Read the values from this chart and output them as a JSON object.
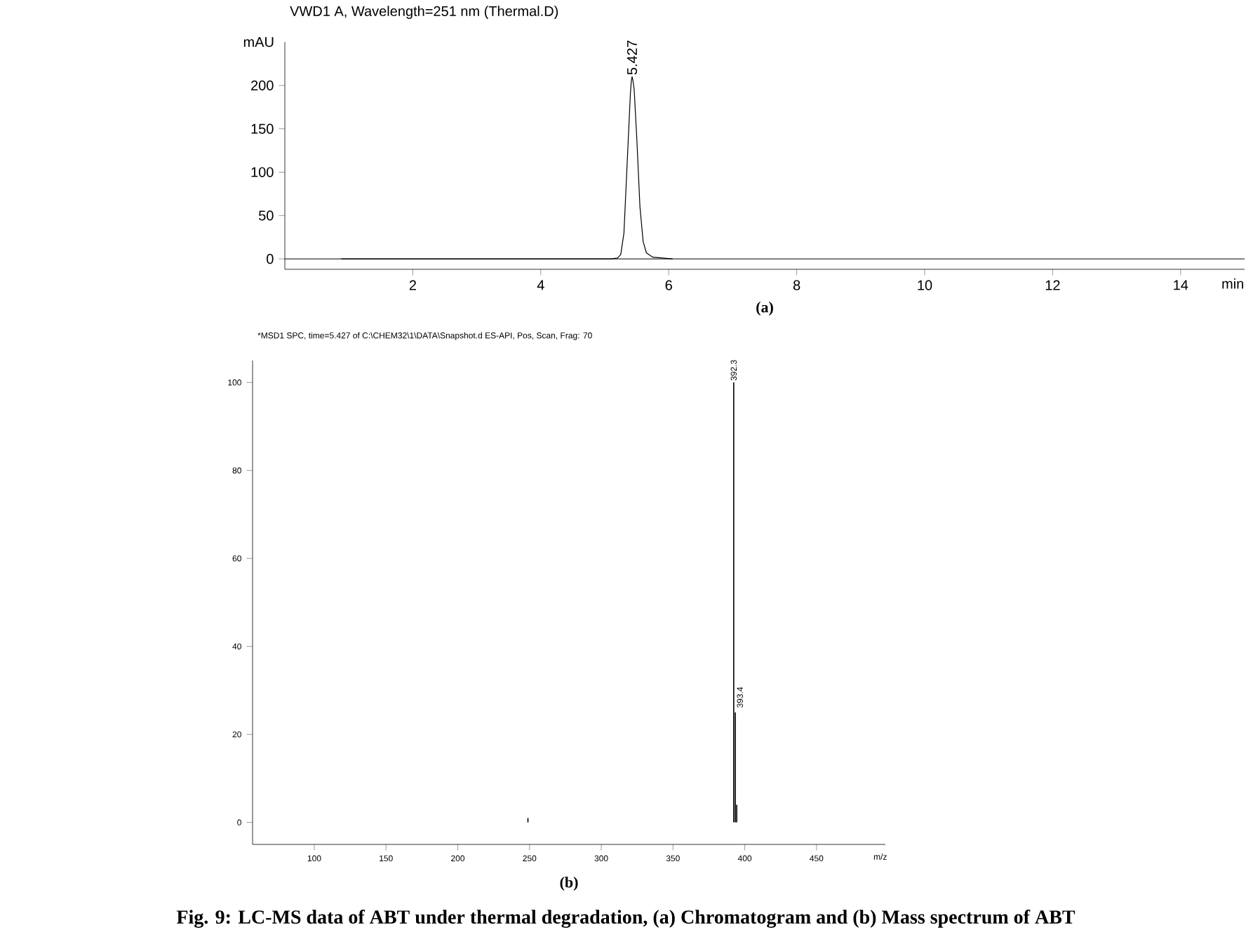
{
  "chart_data": [
    {
      "type": "line",
      "title": "VWD1 A, Wavelength=251 nm (Thermal.D)",
      "xlabel": "min",
      "ylabel": "mAU",
      "x": [
        0.88,
        1.7,
        2.0,
        2.3,
        2.6,
        3.0,
        3.4,
        5.1,
        5.2,
        5.25,
        5.3,
        5.35,
        5.4,
        5.415,
        5.427,
        5.44,
        5.46,
        5.5,
        5.55,
        5.6,
        5.65,
        5.75,
        5.9,
        6.06
      ],
      "series": [
        {
          "color": "#000000",
          "values": [
            0,
            0,
            0,
            0,
            0,
            0,
            0,
            0,
            1,
            5,
            30,
            110,
            190,
            205,
            210,
            206,
            195,
            140,
            60,
            20,
            7,
            2,
            1,
            0
          ]
        }
      ],
      "xlim": [
        0,
        15
      ],
      "xticks": [
        2,
        4,
        6,
        8,
        10,
        12,
        14
      ],
      "ylim": [
        -12,
        250
      ],
      "yticks": [
        0,
        50,
        100,
        150,
        200
      ],
      "ref_lines": [
        {
          "axis": "y",
          "value": 0,
          "color": "#000000"
        }
      ],
      "marker": "none",
      "line_style": "solid",
      "annotations": [
        {
          "text": "5.427",
          "x": 5.427,
          "y": 210
        },
        "(a)"
      ]
    },
    {
      "type": "bar",
      "title": "*MSD1 SPC, time=5.427 of C:\\CHEM32\\1\\DATA\\Snapshot.d   ES-API, Pos, Scan, Frag: 70",
      "xlabel": "m/z",
      "x": [
        248.9,
        392.3,
        393.4,
        394.4
      ],
      "series": [
        {
          "color": "#000000",
          "values": [
            1,
            100,
            25,
            4
          ]
        }
      ],
      "xlim": [
        57,
        498
      ],
      "xticks": [
        100,
        150,
        200,
        250,
        300,
        350,
        400,
        450
      ],
      "ylim": [
        -5,
        105
      ],
      "yticks": [
        0,
        20,
        40,
        60,
        80,
        100
      ],
      "annotations": [
        {
          "text": "392.3",
          "x": 392.3,
          "y": 100
        },
        {
          "text": "393.4",
          "x": 393.4,
          "y": 25
        },
        "(b)",
        "Fig. 9: LC-MS data of ABT under thermal degradation, (a) Chromatogram and (b) Mass spectrum of ABT"
      ]
    }
  ]
}
